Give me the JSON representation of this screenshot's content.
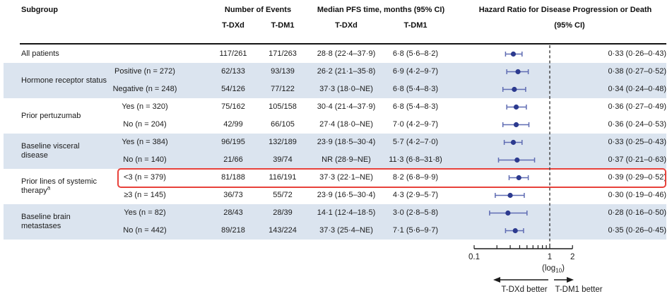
{
  "headers": {
    "subgroup": "Subgroup",
    "events": "Number of Events",
    "median_pfs": "Median PFS time, months (95% CI)",
    "hazard_ratio_line1": "Hazard Ratio for Disease Progression or Death",
    "hazard_ratio_line2": "(95% CI)",
    "arm_tdxd": "T-DXd",
    "arm_tdm1": "T-DM1"
  },
  "colors": {
    "band": "#dbe4ef",
    "marker": "#2c3a8f",
    "ci_line": "#5f6cb3",
    "highlight_box": "#e8423b",
    "reference_line": "#3c3c3c",
    "text": "#1b1b1b"
  },
  "chart_data": {
    "type": "scatter",
    "subtype": "forest-plot",
    "title": "Hazard Ratio for Disease Progression or Death (95% CI)",
    "x_axis": {
      "scale": "log10",
      "min": 0.1,
      "max": 2,
      "reference_line": 1,
      "major_tick_labels": [
        "0.1",
        "1",
        "2"
      ],
      "major_tick_values": [
        0.1,
        1,
        2
      ],
      "minor_tick_values": [
        0.2,
        0.3,
        0.4,
        0.5,
        0.6,
        0.7,
        0.8,
        0.9
      ],
      "scale_label_pre": "(log",
      "scale_label_sub": "10",
      "scale_label_post": ")"
    },
    "direction_labels": {
      "left": "T-DXd better",
      "right": "T-DM1 better"
    },
    "groups": [
      {
        "label": "All patients",
        "sup": "",
        "start": 0,
        "count": 1
      },
      {
        "label": "Hormone receptor status",
        "sup": "",
        "start": 1,
        "count": 2
      },
      {
        "label": "Prior pertuzumab",
        "sup": "",
        "start": 3,
        "count": 2
      },
      {
        "label": "Baseline visceral disease",
        "sup": "",
        "start": 5,
        "count": 2
      },
      {
        "label": "Prior lines of systemic therapy",
        "sup": "a",
        "start": 7,
        "count": 2
      },
      {
        "label": "Baseline brain metastases",
        "sup": "",
        "start": 9,
        "count": 2
      }
    ],
    "rows": [
      {
        "subgroup": "",
        "events_tdxd": "117/261",
        "events_tdm1": "171/263",
        "pfs_tdxd": "28·8 (22·4–37·9)",
        "pfs_tdm1": "6·8 (5·6–8·2)",
        "hr": 0.33,
        "ci_low": 0.26,
        "ci_high": 0.43,
        "hr_label": "0·33 (0·26–0·43)",
        "shaded": false
      },
      {
        "subgroup": "Positive (n = 272)",
        "events_tdxd": "62/133",
        "events_tdm1": "93/139",
        "pfs_tdxd": "26·2 (21·1–35·8)",
        "pfs_tdm1": "6·9 (4·2–9·7)",
        "hr": 0.38,
        "ci_low": 0.27,
        "ci_high": 0.52,
        "hr_label": "0·38 (0·27–0·52)",
        "shaded": true
      },
      {
        "subgroup": "Negative (n = 248)",
        "events_tdxd": "54/126",
        "events_tdm1": "77/122",
        "pfs_tdxd": "37·3 (18·0–NE)",
        "pfs_tdm1": "6·8 (5·4–8·3)",
        "hr": 0.34,
        "ci_low": 0.24,
        "ci_high": 0.48,
        "hr_label": "0·34 (0·24–0·48)",
        "shaded": true
      },
      {
        "subgroup": "Yes (n = 320)",
        "events_tdxd": "75/162",
        "events_tdm1": "105/158",
        "pfs_tdxd": "30·4 (21·4–37·9)",
        "pfs_tdm1": "6·8 (5·4–8·3)",
        "hr": 0.36,
        "ci_low": 0.27,
        "ci_high": 0.49,
        "hr_label": "0·36 (0·27–0·49)",
        "shaded": false
      },
      {
        "subgroup": "No (n = 204)",
        "events_tdxd": "42/99",
        "events_tdm1": "66/105",
        "pfs_tdxd": "27·4 (18·0–NE)",
        "pfs_tdm1": "7·0 (4·2–9·7)",
        "hr": 0.36,
        "ci_low": 0.24,
        "ci_high": 0.53,
        "hr_label": "0·36 (0·24–0·53)",
        "shaded": false
      },
      {
        "subgroup": "Yes (n = 384)",
        "events_tdxd": "96/195",
        "events_tdm1": "132/189",
        "pfs_tdxd": "23·9 (18·5–30·4)",
        "pfs_tdm1": "5·7 (4·2–7·0)",
        "hr": 0.33,
        "ci_low": 0.25,
        "ci_high": 0.43,
        "hr_label": "0·33 (0·25–0·43)",
        "shaded": true
      },
      {
        "subgroup": "No (n = 140)",
        "events_tdxd": "21/66",
        "events_tdm1": "39/74",
        "pfs_tdxd": "NR (28·9–NE)",
        "pfs_tdm1": "11·3 (6·8–31·8)",
        "hr": 0.37,
        "ci_low": 0.21,
        "ci_high": 0.63,
        "hr_label": "0·37 (0·21–0·63)",
        "shaded": true
      },
      {
        "subgroup": "<3 (n = 379)",
        "events_tdxd": "81/188",
        "events_tdm1": "116/191",
        "pfs_tdxd": "37·3 (22·1–NE)",
        "pfs_tdm1": "8·2 (6·8–9·9)",
        "hr": 0.39,
        "ci_low": 0.29,
        "ci_high": 0.52,
        "hr_label": "0·39 (0·29–0·52)",
        "shaded": false,
        "highlighted": true
      },
      {
        "subgroup": "≥3 (n = 145)",
        "events_tdxd": "36/73",
        "events_tdm1": "55/72",
        "pfs_tdxd": "23·9 (16·5–30·4)",
        "pfs_tdm1": "4·3 (2·9–5·7)",
        "hr": 0.3,
        "ci_low": 0.19,
        "ci_high": 0.46,
        "hr_label": "0·30 (0·19–0·46)",
        "shaded": false
      },
      {
        "subgroup": "Yes (n = 82)",
        "events_tdxd": "28/43",
        "events_tdm1": "28/39",
        "pfs_tdxd": "14·1 (12·4–18·5)",
        "pfs_tdm1": "3·0 (2·8–5·8)",
        "hr": 0.28,
        "ci_low": 0.16,
        "ci_high": 0.5,
        "hr_label": "0·28 (0·16–0·50)",
        "shaded": true
      },
      {
        "subgroup": "No (n = 442)",
        "events_tdxd": "89/218",
        "events_tdm1": "143/224",
        "pfs_tdxd": "37·3 (25·4–NE)",
        "pfs_tdm1": "7·1 (5·6–9·7)",
        "hr": 0.35,
        "ci_low": 0.26,
        "ci_high": 0.45,
        "hr_label": "0·35 (0·26–0·45)",
        "shaded": true
      }
    ],
    "highlight": {
      "row_index": 7
    }
  }
}
